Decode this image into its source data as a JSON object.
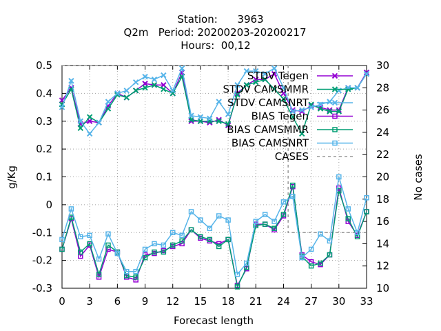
{
  "chart_data": {
    "type": "line",
    "title_lines": [
      "Station:      3963",
      "Q2m   Period: 20200203-20200217",
      "Hours:  00,12"
    ],
    "xlabel": "Forecast length",
    "ylabel": "g/Kg",
    "y2label": "No cases",
    "xlim": [
      0,
      33
    ],
    "ylim": [
      -0.3,
      0.5
    ],
    "y2lim": [
      10,
      30
    ],
    "x_ticks": [
      0,
      3,
      6,
      9,
      12,
      15,
      18,
      21,
      24,
      27,
      30,
      33
    ],
    "y_ticks": [
      -0.3,
      -0.2,
      -0.1,
      0,
      0.1,
      0.2,
      0.3,
      0.4,
      0.5
    ],
    "y2_ticks": [
      10,
      12,
      14,
      16,
      18,
      20,
      22,
      24,
      26,
      28,
      30
    ],
    "grid": true,
    "legend_position": "top-right",
    "x": [
      0,
      1,
      2,
      3,
      4,
      5,
      6,
      7,
      8,
      9,
      10,
      11,
      12,
      13,
      14,
      15,
      16,
      17,
      18,
      19,
      20,
      21,
      22,
      23,
      24,
      25,
      26,
      27,
      28,
      29,
      30,
      31,
      32,
      33
    ],
    "series": [
      {
        "name": "STDV Tegen",
        "color": "#9400d3",
        "marker": "x",
        "axis": "y",
        "values": [
          0.375,
          0.42,
          0.29,
          0.3,
          0.295,
          0.355,
          0.4,
          0.385,
          0.41,
          0.435,
          0.43,
          0.43,
          0.4,
          0.475,
          0.3,
          0.3,
          0.295,
          0.305,
          0.285,
          0.4,
          0.43,
          0.45,
          0.45,
          0.47,
          0.4,
          0.34,
          0.335,
          0.355,
          0.35,
          0.34,
          0.34,
          0.42,
          0.42,
          0.475
        ]
      },
      {
        "name": "STDV CAMSMMR",
        "color": "#009e73",
        "marker": "x",
        "axis": "y",
        "values": [
          0.36,
          0.415,
          0.275,
          0.315,
          0.295,
          0.345,
          0.395,
          0.385,
          0.41,
          0.42,
          0.43,
          0.415,
          0.4,
          0.46,
          0.305,
          0.3,
          0.3,
          0.3,
          0.29,
          0.395,
          0.43,
          0.44,
          0.45,
          0.415,
          0.38,
          0.315,
          0.255,
          0.36,
          0.345,
          0.335,
          0.335,
          0.415,
          0.42,
          0.47
        ]
      },
      {
        "name": "STDV CAMSNRT",
        "color": "#56b4e9",
        "marker": "x",
        "axis": "y",
        "values": [
          0.35,
          0.445,
          0.3,
          0.255,
          0.295,
          0.37,
          0.4,
          0.41,
          0.44,
          0.46,
          0.45,
          0.465,
          0.41,
          0.49,
          0.32,
          0.315,
          0.31,
          0.37,
          0.325,
          0.43,
          0.48,
          0.48,
          0.47,
          0.49,
          0.42,
          0.335,
          0.34,
          0.35,
          0.36,
          0.37,
          0.41,
          0.42,
          0.42,
          0.47
        ]
      },
      {
        "name": "BIAS Tegen",
        "color": "#9400d3",
        "marker": "box",
        "axis": "y",
        "values": [
          -0.16,
          -0.05,
          -0.185,
          -0.145,
          -0.26,
          -0.16,
          -0.17,
          -0.26,
          -0.27,
          -0.18,
          -0.175,
          -0.165,
          -0.15,
          -0.14,
          -0.09,
          -0.12,
          -0.13,
          -0.14,
          -0.125,
          -0.29,
          -0.23,
          -0.07,
          -0.07,
          -0.09,
          -0.04,
          0.065,
          -0.18,
          -0.205,
          -0.215,
          -0.18,
          0.06,
          -0.06,
          -0.11,
          -0.025
        ]
      },
      {
        "name": "BIAS CAMSMMR",
        "color": "#009e73",
        "marker": "box",
        "axis": "y",
        "values": [
          -0.16,
          -0.045,
          -0.17,
          -0.14,
          -0.25,
          -0.145,
          -0.17,
          -0.255,
          -0.26,
          -0.19,
          -0.17,
          -0.17,
          -0.145,
          -0.13,
          -0.09,
          -0.115,
          -0.125,
          -0.15,
          -0.125,
          -0.295,
          -0.225,
          -0.075,
          -0.07,
          -0.085,
          -0.035,
          0.07,
          -0.185,
          -0.22,
          -0.21,
          -0.18,
          0.05,
          -0.05,
          -0.115,
          -0.025
        ]
      },
      {
        "name": "BIAS CAMSNRT",
        "color": "#56b4e9",
        "marker": "box",
        "axis": "y",
        "values": [
          -0.125,
          -0.015,
          -0.115,
          -0.11,
          -0.195,
          -0.105,
          -0.175,
          -0.24,
          -0.24,
          -0.16,
          -0.14,
          -0.145,
          -0.1,
          -0.11,
          -0.025,
          -0.055,
          -0.085,
          -0.04,
          -0.055,
          -0.25,
          -0.21,
          -0.06,
          -0.035,
          -0.06,
          0.01,
          0.03,
          -0.19,
          -0.16,
          -0.105,
          -0.13,
          0.1,
          -0.015,
          -0.1,
          0.025
        ]
      },
      {
        "name": "CASES",
        "color": "#999999",
        "marker": "none",
        "dash": true,
        "axis": "y2",
        "values": [
          30,
          30,
          30,
          30,
          30,
          30,
          30,
          30,
          30,
          30,
          30,
          30,
          30,
          30,
          30,
          30,
          30,
          30,
          30,
          30,
          30,
          30,
          30,
          30,
          30,
          15,
          15,
          15,
          15,
          15,
          15,
          15,
          15,
          15
        ]
      }
    ]
  }
}
